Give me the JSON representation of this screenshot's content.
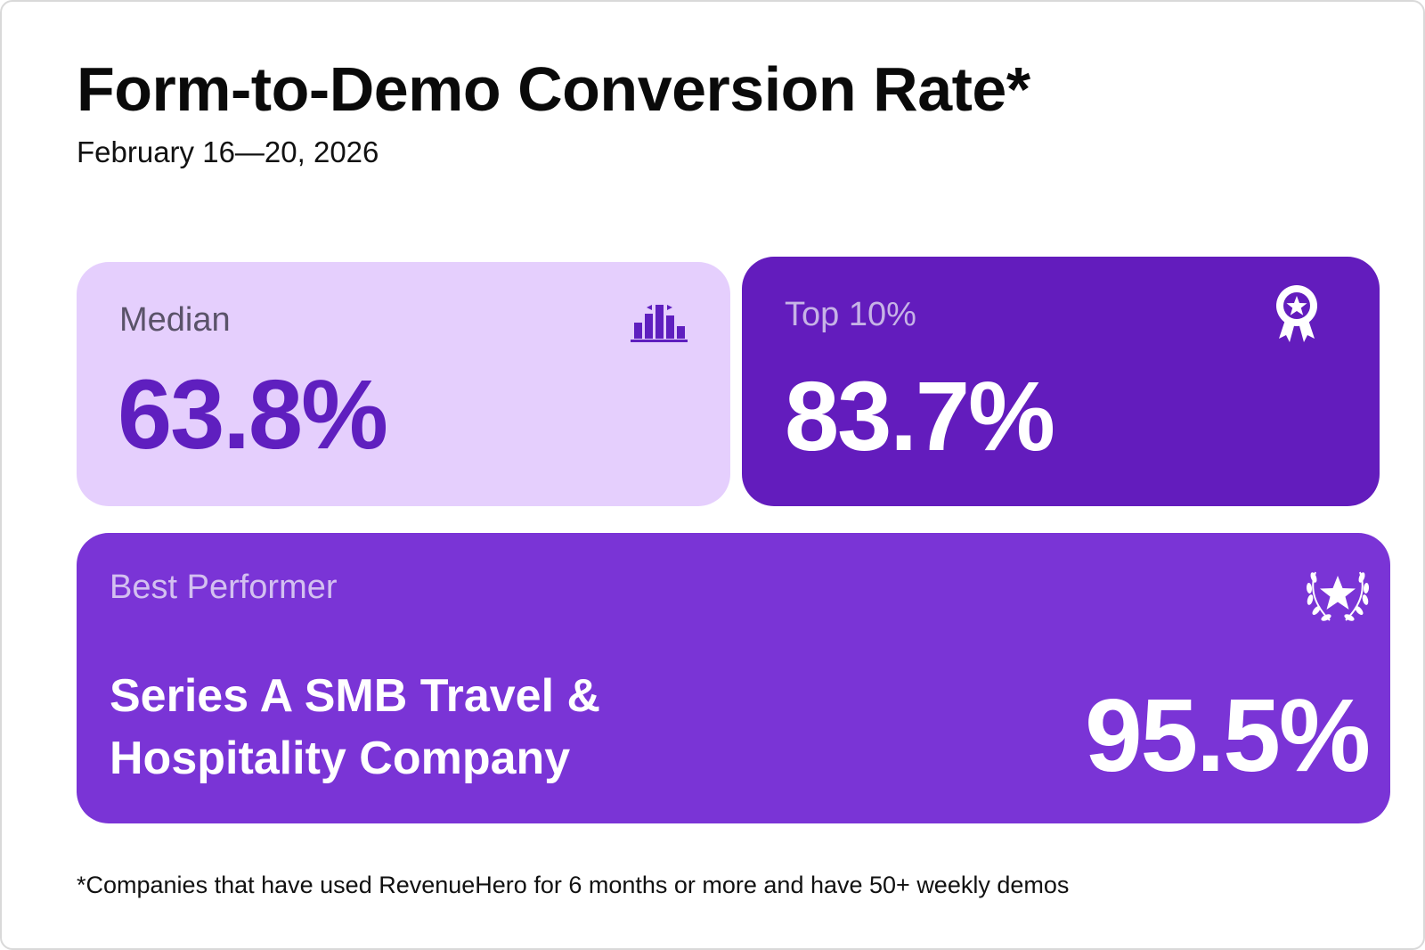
{
  "header": {
    "title": "Form-to-Demo Conversion Rate*",
    "date_range": "February 16—20, 2026"
  },
  "cards": {
    "median": {
      "label": "Median",
      "value": "63.8%",
      "icon": "bar-chart-icon"
    },
    "top": {
      "label": "Top 10%",
      "value": "83.7%",
      "icon": "award-ribbon-icon"
    },
    "best": {
      "label": "Best Performer",
      "company": "Series A SMB Travel & Hospitality Company",
      "value": "95.5%",
      "icon": "laurel-star-icon"
    }
  },
  "footnote": "*Companies that have used RevenueHero for 6 months or more and have 50+ weekly demos",
  "colors": {
    "median_bg": "#e5cffd",
    "median_accent": "#5f1fbf",
    "top_bg": "#631cbd",
    "best_bg": "#7a34d6",
    "text_dark": "#0a0a0a"
  }
}
